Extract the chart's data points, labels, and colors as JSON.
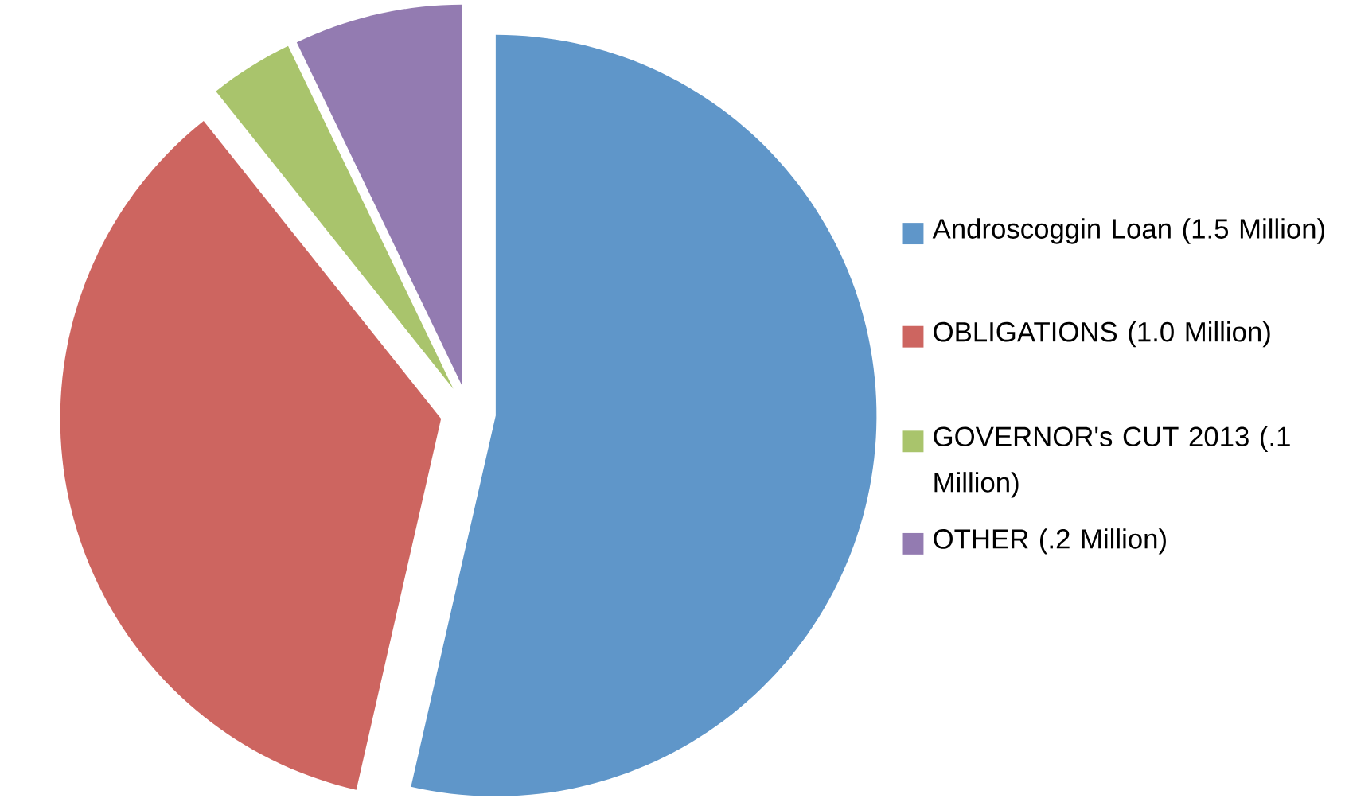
{
  "chart_data": {
    "type": "pie",
    "categories": [
      "Androscoggin Loan (1.5 Million)",
      "OBLIGATIONS (1.0 Million)",
      "GOVERNOR's CUT 2013 (.1 Million)",
      "OTHER (.2 Million)"
    ],
    "values": [
      1.5,
      1.0,
      0.1,
      0.2
    ],
    "colors": [
      "#5f96c9",
      "#cd6560",
      "#a9c46c",
      "#937bb1"
    ],
    "legend": "right"
  }
}
